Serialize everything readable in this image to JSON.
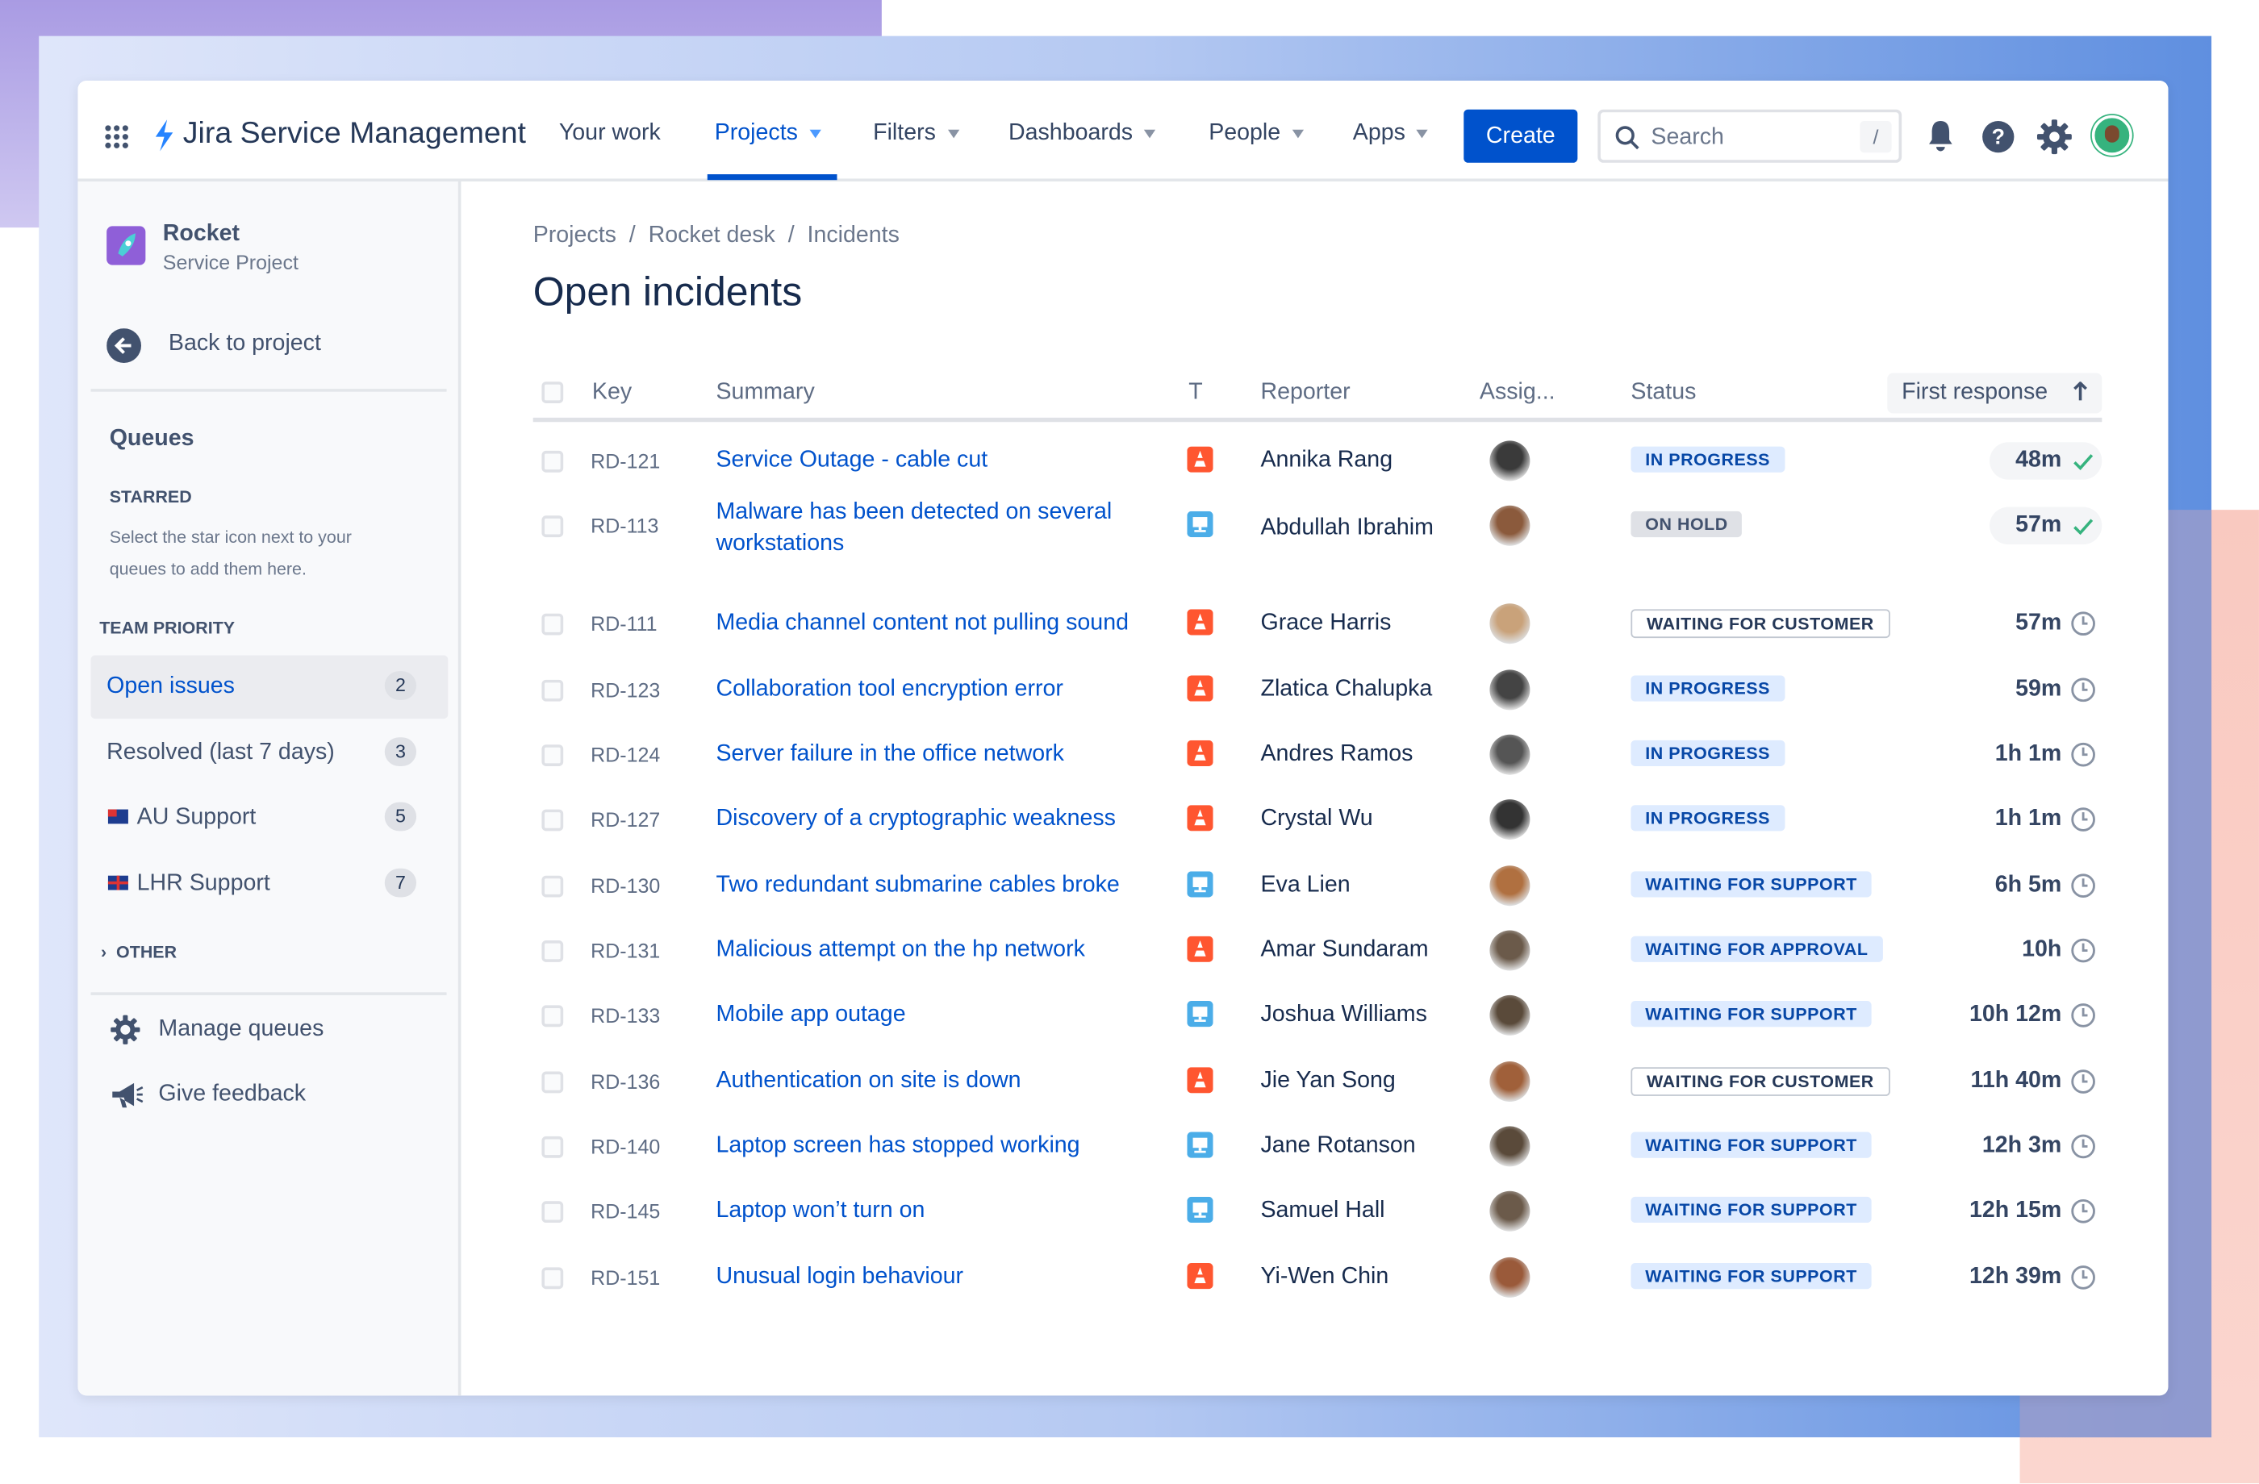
{
  "app": {
    "name": "Jira Service Management"
  },
  "nav": {
    "items": [
      {
        "label": "Your work"
      },
      {
        "label": "Projects"
      },
      {
        "label": "Filters"
      },
      {
        "label": "Dashboards"
      },
      {
        "label": "People"
      },
      {
        "label": "Apps"
      }
    ],
    "active": "Projects",
    "create_label": "Create",
    "search_placeholder": "Search",
    "search_shortcut": "/"
  },
  "sidebar": {
    "project_name": "Rocket",
    "project_type": "Service Project",
    "back_label": "Back to project",
    "queues_title": "Queues",
    "starred_title": "STARRED",
    "starred_hint_1": "Select the star icon next to your",
    "starred_hint_2": "queues to add them here.",
    "team_priority_title": "TEAM PRIORITY",
    "queues": [
      {
        "label": "Open issues",
        "count": "2",
        "selected": true
      },
      {
        "label": "Resolved (last 7 days)",
        "count": "3"
      },
      {
        "label": "AU Support",
        "count": "5",
        "flag": "AU"
      },
      {
        "label": "LHR Support",
        "count": "7",
        "flag": "UK"
      }
    ],
    "other_title": "OTHER",
    "manage_label": "Manage queues",
    "feedback_label": "Give feedback"
  },
  "breadcrumb": [
    {
      "label": "Projects"
    },
    {
      "label": "Rocket desk"
    },
    {
      "label": "Incidents"
    }
  ],
  "breadcrumb_sep": "/",
  "page_title": "Open incidents",
  "table": {
    "headers": {
      "key": "Key",
      "summary": "Summary",
      "type": "T",
      "reporter": "Reporter",
      "assignee": "Assig...",
      "status": "Status",
      "first_response": "First response"
    },
    "sort": "first_response ascending",
    "rows": [
      {
        "key": "RD-121",
        "summary": "Service Outage - cable cut",
        "type": "incident",
        "reporter": "Annika Rang",
        "status": "IN PROGRESS",
        "first_response": "48m",
        "met": true
      },
      {
        "key": "RD-113",
        "summary": "Malware has been detected on several workstations",
        "type": "hardware",
        "reporter": "Abdullah Ibrahim",
        "status": "ON HOLD",
        "first_response": "57m",
        "met": true
      },
      {
        "key": "RD-111",
        "summary": "Media channel content not pulling sound",
        "type": "incident",
        "reporter": "Grace Harris",
        "status": "WAITING FOR CUSTOMER",
        "first_response": "57m"
      },
      {
        "key": "RD-123",
        "summary": "Collaboration tool encryption error",
        "type": "incident",
        "reporter": "Zlatica Chalupka",
        "status": "IN PROGRESS",
        "first_response": "59m"
      },
      {
        "key": "RD-124",
        "summary": "Server failure in the office network",
        "type": "incident",
        "reporter": "Andres Ramos",
        "status": "IN PROGRESS",
        "first_response": "1h 1m"
      },
      {
        "key": "RD-127",
        "summary": "Discovery of a cryptographic weakness",
        "type": "incident",
        "reporter": "Crystal Wu",
        "status": "IN PROGRESS",
        "first_response": "1h 1m"
      },
      {
        "key": "RD-130",
        "summary": "Two redundant submarine cables broke",
        "type": "hardware",
        "reporter": "Eva Lien",
        "status": "WAITING FOR SUPPORT",
        "first_response": "6h 5m"
      },
      {
        "key": "RD-131",
        "summary": "Malicious attempt on the hp network",
        "type": "incident",
        "reporter": "Amar Sundaram",
        "status": "WAITING FOR APPROVAL",
        "first_response": "10h"
      },
      {
        "key": "RD-133",
        "summary": "Mobile app outage",
        "type": "hardware",
        "reporter": "Joshua Williams",
        "status": "WAITING FOR SUPPORT",
        "first_response": "10h 12m"
      },
      {
        "key": "RD-136",
        "summary": "Authentication on site is down",
        "type": "incident",
        "reporter": "Jie Yan Song",
        "status": "WAITING FOR CUSTOMER",
        "first_response": "11h 40m"
      },
      {
        "key": "RD-140",
        "summary": "Laptop screen has stopped working",
        "type": "hardware",
        "reporter": "Jane Rotanson",
        "status": "WAITING FOR SUPPORT",
        "first_response": "12h 3m"
      },
      {
        "key": "RD-145",
        "summary": "Laptop won’t turn on",
        "type": "hardware",
        "reporter": "Samuel Hall",
        "status": "WAITING FOR SUPPORT",
        "first_response": "12h 15m"
      },
      {
        "key": "RD-151",
        "summary": "Unusual login behaviour",
        "type": "incident",
        "reporter": "Yi-Wen Chin",
        "status": "WAITING FOR SUPPORT",
        "first_response": "12h 39m"
      }
    ]
  },
  "colors": {
    "brand": "#0052cc",
    "incident": "#ff5630",
    "hardware": "#4bade8",
    "in_progress_bg": "#deebff",
    "in_progress_fg": "#0747a6",
    "hold_bg": "#dfe1e6",
    "hold_fg": "#42526e",
    "met": "#36b37e"
  }
}
